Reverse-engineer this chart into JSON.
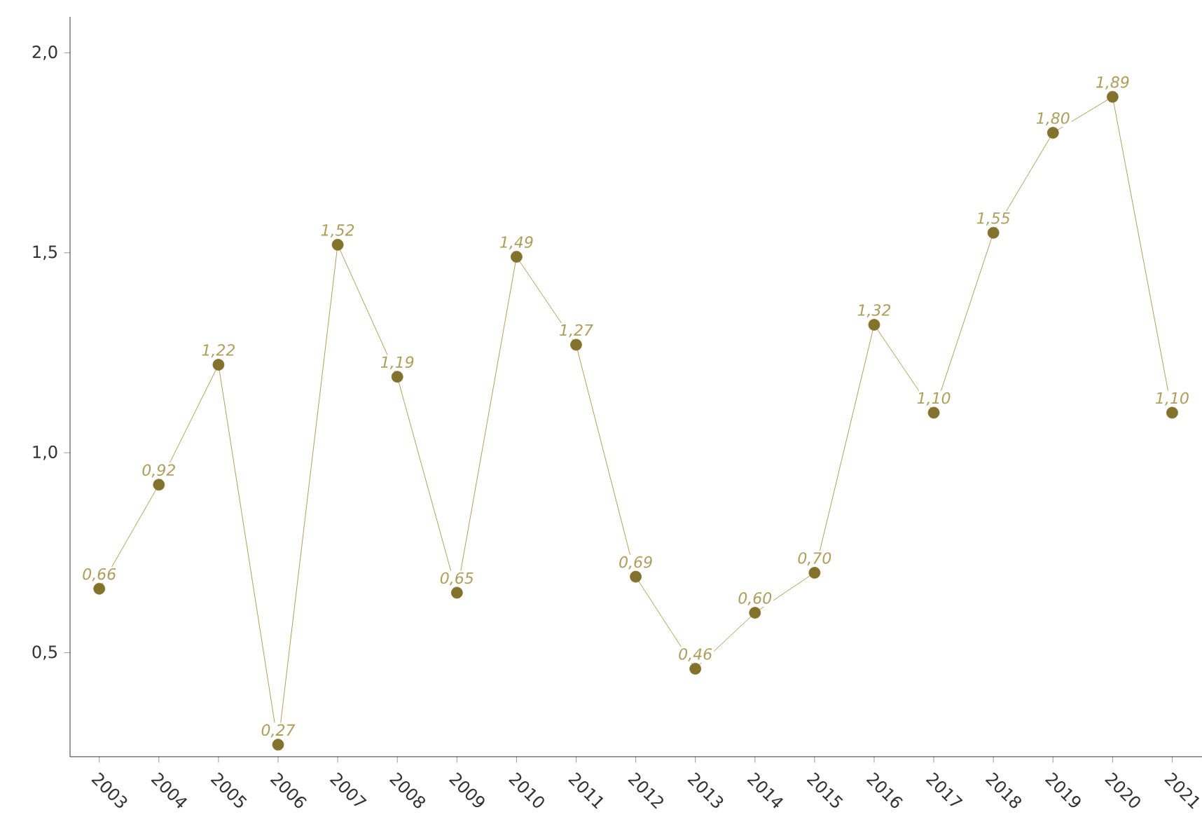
{
  "chart_data": {
    "type": "line",
    "categories": [
      "2003",
      "2004",
      "2005",
      "2006",
      "2007",
      "2008",
      "2009",
      "2010",
      "2011",
      "2012",
      "2013",
      "2014",
      "2015",
      "2016",
      "2017",
      "2018",
      "2019",
      "2020",
      "2021"
    ],
    "values": [
      0.66,
      0.92,
      1.22,
      0.27,
      1.52,
      1.19,
      0.65,
      1.49,
      1.27,
      0.69,
      0.46,
      0.6,
      0.7,
      1.32,
      1.1,
      1.55,
      1.8,
      1.89,
      1.1
    ],
    "value_labels": [
      "0,66",
      "0,92",
      "1,22",
      "0,27",
      "1,52",
      "1,19",
      "0,65",
      "1,49",
      "1,27",
      "0,69",
      "0,46",
      "0,60",
      "0,70",
      "1,32",
      "1,10",
      "1,55",
      "1,80",
      "1,89",
      "1,10"
    ],
    "color": "#9a8634",
    "marker": "circle",
    "ylim": [
      0.24,
      2.09
    ],
    "yticks": [
      {
        "value": 0.5,
        "label": "0,5"
      },
      {
        "value": 1.0,
        "label": "1,0"
      },
      {
        "value": 1.5,
        "label": "1,5"
      },
      {
        "value": 2.0,
        "label": "2,0"
      }
    ],
    "grid": false
  }
}
